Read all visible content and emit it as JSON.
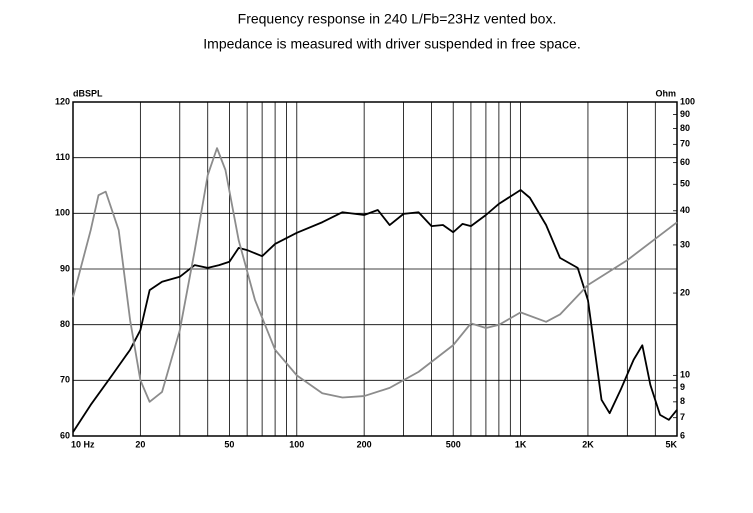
{
  "chart_data": {
    "type": "line",
    "title": "Frequency response in 240 L/Fb=23Hz vented box.",
    "subtitle": "Impedance is measured with driver suspended in free space.",
    "y_label": "dBSPL",
    "y2_label": "Ohm",
    "xscale": "log",
    "y2scale": "log",
    "grid": true,
    "xlim": [
      10,
      5000
    ],
    "xticks": [
      {
        "value": 10,
        "label": "10 Hz"
      },
      20,
      50,
      100,
      200,
      500,
      {
        "value": 1000,
        "label": "1K"
      },
      {
        "value": 2000,
        "label": "2K"
      },
      {
        "value": 5000,
        "label": "5K"
      }
    ],
    "xminor_grid": [
      30,
      40,
      60,
      70,
      80,
      90,
      300,
      400,
      600,
      700,
      800,
      900,
      3000,
      4000
    ],
    "ylim": [
      60,
      120
    ],
    "yticks": [
      60,
      70,
      80,
      90,
      100,
      110,
      120
    ],
    "y2lim": [
      6,
      100
    ],
    "y2ticks": [
      6,
      7,
      8,
      9,
      10,
      20,
      30,
      40,
      50,
      60,
      70,
      80,
      90,
      100
    ],
    "series": [
      {
        "color": "#000000",
        "x": [
          10,
          12,
          15,
          18,
          20,
          22,
          25,
          30,
          35,
          40,
          45,
          50,
          55,
          60,
          70,
          80,
          100,
          130,
          160,
          200,
          230,
          260,
          300,
          350,
          400,
          450,
          500,
          550,
          600,
          700,
          800,
          1000,
          1100,
          1300,
          1500,
          1800,
          2000,
          2300,
          2500,
          2800,
          3200,
          3500,
          3800,
          4200,
          4600,
          5000
        ],
        "values": [
          60.7,
          65.6,
          71,
          75.5,
          79,
          86.2,
          87.7,
          88.6,
          90.7,
          90.2,
          90.7,
          91.3,
          93.8,
          93.4,
          92.3,
          94.5,
          96.5,
          98.4,
          100.2,
          99.7,
          100.6,
          97.9,
          99.9,
          100.2,
          97.7,
          97.9,
          96.6,
          98.1,
          97.7,
          99.7,
          101.7,
          104.2,
          102.8,
          97.9,
          92,
          90.2,
          84.4,
          66.5,
          64.1,
          68.3,
          73.7,
          76.3,
          69.2,
          63.8,
          62.9,
          64.7
        ]
      },
      {
        "color": "#8c8c8c",
        "axis": "y2",
        "x": [
          10,
          12,
          13,
          14,
          16,
          18,
          20,
          22,
          25,
          30,
          35,
          40,
          44,
          48,
          55,
          65,
          80,
          100,
          130,
          160,
          200,
          260,
          350,
          500,
          600,
          700,
          800,
          1000,
          1300,
          1500,
          2000,
          3000,
          5000
        ],
        "values": [
          19.3,
          34,
          45.6,
          47,
          34,
          15.9,
          9.6,
          8,
          8.7,
          14.6,
          28.7,
          54,
          67.8,
          56.4,
          31.2,
          18.9,
          12.4,
          10,
          8.6,
          8.3,
          8.4,
          9,
          10.3,
          12.9,
          15.5,
          14.9,
          15.3,
          17,
          15.7,
          16.7,
          21.4,
          26.4,
          36.3
        ]
      }
    ]
  }
}
